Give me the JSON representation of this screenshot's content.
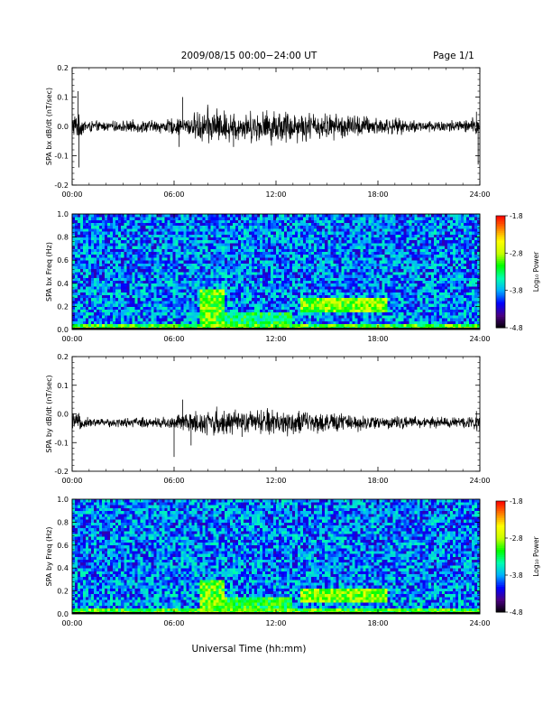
{
  "header": {
    "title": "2009/08/15  00:00−24:00 UT",
    "page": "Page 1/1"
  },
  "footer": {
    "xlabel": "Universal Time (hh:mm)"
  },
  "colors": {
    "trace": "#000000",
    "colormap": [
      "#000000",
      "#4b0082",
      "#0000ff",
      "#00b0ff",
      "#00ffb0",
      "#00ff00",
      "#c8ff00",
      "#ffff00",
      "#ff8000",
      "#ff0000"
    ]
  },
  "chart_data": [
    {
      "type": "line",
      "title": "",
      "ylabel": "SPA bx dB/dt (nT/sec)",
      "xlabel": "",
      "xlim": [
        0,
        24
      ],
      "x_ticks": [
        "00:00",
        "06:00",
        "12:00",
        "18:00",
        "24:00"
      ],
      "ylim": [
        -0.2,
        0.2
      ],
      "y_ticks": [
        "-0.2",
        "-0.1",
        "0.0",
        "0.1",
        "0.2"
      ],
      "grid": false,
      "baseline": 0.0,
      "envelope": {
        "hours": [
          0,
          0.5,
          1,
          2,
          3,
          4,
          5,
          6,
          6.5,
          7,
          7.5,
          8,
          8.5,
          9,
          10,
          11,
          12,
          13,
          14,
          15,
          16,
          17,
          18,
          19,
          20,
          21,
          22,
          23,
          23.5,
          24
        ],
        "amplitude": [
          0.045,
          0.03,
          0.018,
          0.015,
          0.017,
          0.02,
          0.02,
          0.025,
          0.028,
          0.035,
          0.05,
          0.06,
          0.055,
          0.05,
          0.045,
          0.05,
          0.055,
          0.05,
          0.045,
          0.04,
          0.04,
          0.035,
          0.03,
          0.025,
          0.02,
          0.02,
          0.02,
          0.02,
          0.025,
          0.035
        ]
      },
      "spikes": [
        {
          "hour": 0.35,
          "value": 0.12
        },
        {
          "hour": 0.4,
          "value": -0.14
        },
        {
          "hour": 6.5,
          "value": 0.1
        },
        {
          "hour": 6.3,
          "value": -0.07
        },
        {
          "hour": 9.5,
          "value": -0.07
        },
        {
          "hour": 23.9,
          "value": -0.13
        },
        {
          "hour": 23.8,
          "value": 0.05
        }
      ]
    },
    {
      "type": "heatmap",
      "title": "",
      "ylabel": "SPA bx Freq (Hz)",
      "xlim": [
        0,
        24
      ],
      "x_ticks": [
        "00:00",
        "06:00",
        "12:00",
        "18:00",
        "24:00"
      ],
      "ylim": [
        0.0,
        1.0
      ],
      "y_ticks": [
        "0.0",
        "0.2",
        "0.4",
        "0.6",
        "0.8",
        "1.0"
      ],
      "colorbar": {
        "label": "Log₁₀ Power",
        "range": [
          -4.8,
          -1.8
        ],
        "ticks": [
          "-1.8",
          "-2.8",
          "-3.8",
          "-4.8"
        ]
      },
      "features": [
        {
          "label": "low-frequency band",
          "hours": [
            0,
            24
          ],
          "freq": [
            0.0,
            0.05
          ],
          "level": -3.1
        },
        {
          "label": "broadband enhancement",
          "hours": [
            7.5,
            9.0
          ],
          "freq": [
            0.0,
            0.35
          ],
          "level": -3.0
        },
        {
          "label": "elevated power",
          "hours": [
            9.0,
            13.0
          ],
          "freq": [
            0.0,
            0.15
          ],
          "level": -3.3
        },
        {
          "label": "Pc band rising tone",
          "hours": [
            13.5,
            18.5
          ],
          "freq": [
            0.15,
            0.28
          ],
          "level": -2.9
        }
      ],
      "background_level": -3.9
    },
    {
      "type": "line",
      "title": "",
      "ylabel": "SPA by dB/dt (nT/sec)",
      "xlabel": "",
      "xlim": [
        0,
        24
      ],
      "x_ticks": [
        "00:00",
        "06:00",
        "12:00",
        "18:00",
        "24:00"
      ],
      "ylim": [
        -0.2,
        0.2
      ],
      "y_ticks": [
        "-0.2",
        "-0.1",
        "0.0",
        "0.1",
        "0.2"
      ],
      "grid": false,
      "baseline": -0.03,
      "envelope": {
        "hours": [
          0,
          0.5,
          1,
          2,
          3,
          4,
          5,
          6,
          6.5,
          7,
          7.5,
          8,
          8.5,
          9,
          10,
          11,
          12,
          13,
          14,
          15,
          16,
          17,
          18,
          19,
          20,
          21,
          22,
          23,
          23.5,
          24
        ],
        "amplitude": [
          0.035,
          0.025,
          0.015,
          0.013,
          0.015,
          0.017,
          0.018,
          0.022,
          0.03,
          0.035,
          0.04,
          0.045,
          0.045,
          0.04,
          0.035,
          0.04,
          0.045,
          0.04,
          0.035,
          0.03,
          0.03,
          0.025,
          0.022,
          0.02,
          0.018,
          0.018,
          0.018,
          0.018,
          0.022,
          0.03
        ]
      },
      "spikes": [
        {
          "hour": 6.0,
          "value": -0.15
        },
        {
          "hour": 6.5,
          "value": 0.05
        },
        {
          "hour": 7.0,
          "value": -0.11
        },
        {
          "hour": 10.0,
          "value": -0.08
        },
        {
          "hour": 11.5,
          "value": 0.02
        },
        {
          "hour": 23.8,
          "value": 0.01
        }
      ]
    },
    {
      "type": "heatmap",
      "title": "",
      "ylabel": "SPA by Freq (Hz)",
      "xlim": [
        0,
        24
      ],
      "x_ticks": [
        "00:00",
        "06:00",
        "12:00",
        "18:00",
        "24:00"
      ],
      "ylim": [
        0.0,
        1.0
      ],
      "y_ticks": [
        "0.0",
        "0.2",
        "0.4",
        "0.6",
        "0.8",
        "1.0"
      ],
      "colorbar": {
        "label": "Log₁₀ Power",
        "range": [
          -4.8,
          -1.8
        ],
        "ticks": [
          "-1.8",
          "-2.8",
          "-3.8",
          "-4.8"
        ]
      },
      "features": [
        {
          "label": "low-frequency band",
          "hours": [
            0,
            24
          ],
          "freq": [
            0.0,
            0.05
          ],
          "level": -3.1
        },
        {
          "label": "broadband enhancement",
          "hours": [
            7.5,
            9.0
          ],
          "freq": [
            0.0,
            0.3
          ],
          "level": -3.0
        },
        {
          "label": "elevated power",
          "hours": [
            9.0,
            13.0
          ],
          "freq": [
            0.0,
            0.15
          ],
          "level": -3.2
        },
        {
          "label": "Pc band rising tone",
          "hours": [
            13.5,
            18.5
          ],
          "freq": [
            0.1,
            0.22
          ],
          "level": -2.9
        }
      ],
      "background_level": -3.9
    }
  ]
}
